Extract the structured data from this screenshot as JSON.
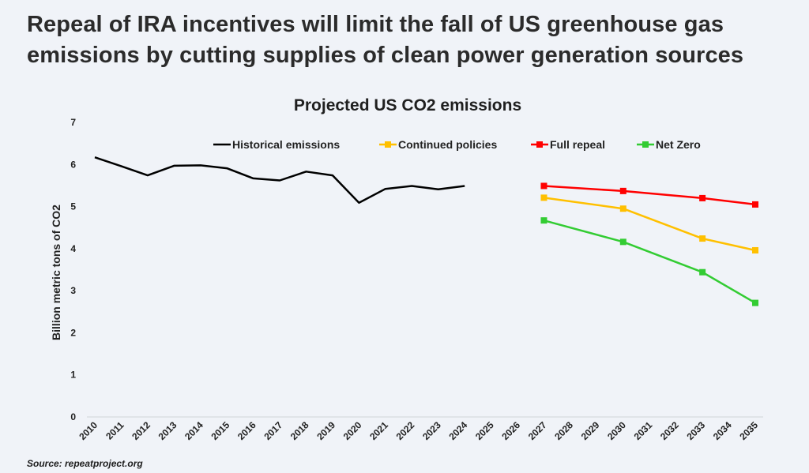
{
  "headline": {
    "line1": "Repeal of IRA incentives will limit the fall of US greenhouse gas",
    "line2": "emissions by cutting supplies of clean power generation sources"
  },
  "source": "Source: repeatproject.org",
  "chart_data": {
    "type": "line",
    "title": "Projected US CO2 emissions",
    "xlabel": "",
    "ylabel": "Billion metric tons of CO2",
    "ylim": [
      0,
      7
    ],
    "yticks": [
      0,
      1,
      2,
      3,
      4,
      5,
      6,
      7
    ],
    "grid": false,
    "legend_position": "top",
    "categories": [
      "2010",
      "2011",
      "2012",
      "2013",
      "2014",
      "2015",
      "2016",
      "2017",
      "2018",
      "2019",
      "2020",
      "2021",
      "2022",
      "2023",
      "2024",
      "2025",
      "2026",
      "2027",
      "2028",
      "2029",
      "2030",
      "2031",
      "2032",
      "2033",
      "2034",
      "2035"
    ],
    "series": [
      {
        "name": "Historical emissions",
        "color": "#000000",
        "marker": "none",
        "x": [
          "2010",
          "2011",
          "2012",
          "2013",
          "2014",
          "2015",
          "2016",
          "2017",
          "2018",
          "2019",
          "2020",
          "2021",
          "2022",
          "2023",
          "2024"
        ],
        "values": [
          6.17,
          5.96,
          5.74,
          5.97,
          5.98,
          5.91,
          5.67,
          5.62,
          5.83,
          5.74,
          5.09,
          5.42,
          5.49,
          5.41,
          5.49
        ]
      },
      {
        "name": "Continued policies",
        "color": "#ffc000",
        "marker": "square",
        "x": [
          "2027",
          "2030",
          "2033",
          "2035"
        ],
        "values": [
          5.21,
          4.95,
          4.24,
          3.96
        ]
      },
      {
        "name": "Full repeal",
        "color": "#ff0000",
        "marker": "square",
        "x": [
          "2027",
          "2030",
          "2033",
          "2035"
        ],
        "values": [
          5.49,
          5.37,
          5.2,
          5.05
        ]
      },
      {
        "name": "Net Zero",
        "color": "#33cc33",
        "marker": "square",
        "x": [
          "2027",
          "2030",
          "2033",
          "2035"
        ],
        "values": [
          4.67,
          4.16,
          3.44,
          2.71
        ]
      }
    ]
  }
}
